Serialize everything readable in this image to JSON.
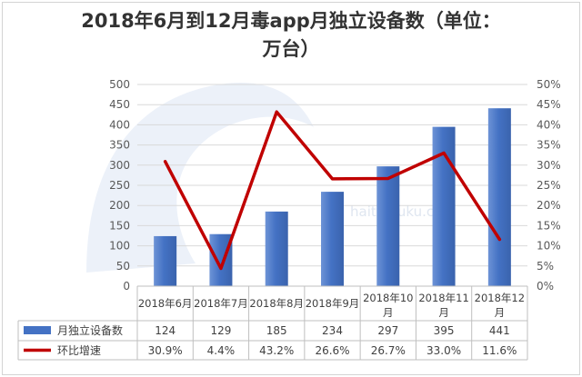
{
  "title": {
    "line1": "2018年6月到12月毒app月独立设备数（单位：",
    "line2": "万台）"
  },
  "watermark": "haitunjuku.com",
  "colors": {
    "bar": "#4472c4",
    "bar_light": "#6d93d6",
    "line": "#c00000",
    "grid": "#d9d9d9",
    "text": "#595959"
  },
  "chart_data": {
    "type": "bar",
    "title": "2018年6月到12月毒app月独立设备数（单位：万台）",
    "categories": [
      "2018年6月",
      "2018年7月",
      "2018年8月",
      "2018年9月",
      "2018年10月",
      "2018年11月",
      "2018年12月"
    ],
    "series": [
      {
        "name": "月独立设备数",
        "type": "bar",
        "axis": "left",
        "values": [
          124,
          129,
          185,
          234,
          297,
          395,
          441
        ],
        "labels": [
          "124",
          "129",
          "185",
          "234",
          "297",
          "395",
          "441"
        ]
      },
      {
        "name": "环比增速",
        "type": "line",
        "axis": "right",
        "values": [
          30.9,
          4.4,
          43.2,
          26.6,
          26.7,
          33.0,
          11.6
        ],
        "labels": [
          "30.9%",
          "4.4%",
          "43.2%",
          "26.6%",
          "26.7%",
          "33.0%",
          "11.6%"
        ]
      }
    ],
    "y_left": {
      "min": 0,
      "max": 500,
      "step": 50
    },
    "y_right": {
      "min": 0,
      "max": 50,
      "step": 5,
      "suffix": "%"
    },
    "grid": true,
    "legend": "data-table"
  }
}
